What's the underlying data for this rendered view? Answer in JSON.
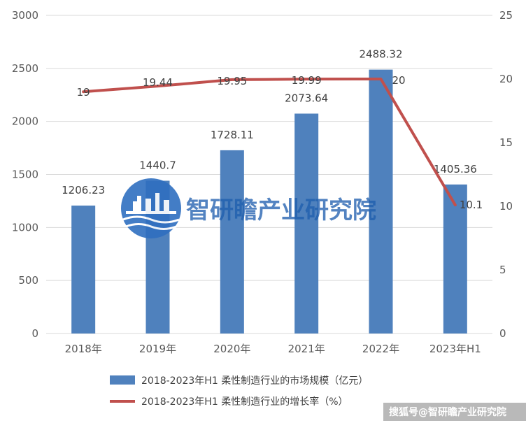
{
  "chart_data": {
    "type": "bar+line",
    "categories": [
      "2018年",
      "2019年",
      "2020年",
      "2021年",
      "2022年",
      "2023年H1"
    ],
    "series": [
      {
        "name": "2018-2023年H1 柔性制造行业的市场规模（亿元）",
        "type": "bar",
        "axis": "left",
        "values": [
          1206.23,
          1440.7,
          1728.11,
          2073.64,
          2488.32,
          1405.36
        ],
        "labels": [
          "1206.23",
          "1440.7",
          "1728.11",
          "2073.64",
          "2488.32",
          "1405.36"
        ],
        "color": "#4f81bd"
      },
      {
        "name": "2018-2023年H1 柔性制造行业的增长率（%）",
        "type": "line",
        "axis": "right",
        "values": [
          19,
          19.44,
          19.95,
          19.99,
          20,
          10.1
        ],
        "labels": [
          "19",
          "19.44",
          "19.95",
          "19.99",
          "20",
          "10.1"
        ],
        "color": "#c0504d"
      }
    ],
    "y_left": {
      "min": 0,
      "max": 3000,
      "ticks": [
        "0",
        "500",
        "1000",
        "1500",
        "2000",
        "2500",
        "3000"
      ]
    },
    "y_right": {
      "min": 0,
      "max": 25,
      "ticks": [
        "0",
        "5",
        "10",
        "15",
        "20",
        "25"
      ]
    },
    "grid": true,
    "legend_position": "bottom"
  },
  "watermark": {
    "text": "智研瞻产业研究院",
    "logo_icon": "city-skyline-globe-icon"
  },
  "footer": {
    "text": "搜狐号@智研瞻产业研究院"
  }
}
